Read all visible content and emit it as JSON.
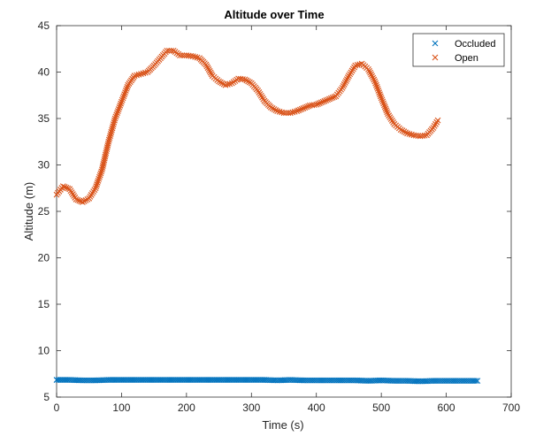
{
  "chart_data": {
    "type": "scatter",
    "title": "Altitude over Time",
    "xlabel": "Time (s)",
    "ylabel": "Altitude (m)",
    "xlim": [
      0,
      700
    ],
    "ylim": [
      5,
      45
    ],
    "xticks": [
      "0",
      "100",
      "200",
      "300",
      "400",
      "500",
      "600",
      "700"
    ],
    "yticks": [
      "5",
      "10",
      "15",
      "20",
      "25",
      "30",
      "35",
      "40",
      "45"
    ],
    "grid": false,
    "legend_position": "top-right",
    "marker": "x",
    "series": [
      {
        "name": "Occluded",
        "color": "#0072BD",
        "x": [
          0,
          20,
          40,
          60,
          80,
          100,
          120,
          140,
          160,
          180,
          200,
          220,
          240,
          260,
          280,
          300,
          320,
          340,
          360,
          380,
          400,
          420,
          440,
          460,
          480,
          500,
          520,
          540,
          560,
          580,
          600,
          620,
          640,
          648
        ],
        "y": [
          6.85,
          6.85,
          6.8,
          6.8,
          6.85,
          6.85,
          6.85,
          6.85,
          6.85,
          6.85,
          6.85,
          6.85,
          6.85,
          6.85,
          6.85,
          6.85,
          6.85,
          6.8,
          6.85,
          6.8,
          6.8,
          6.8,
          6.8,
          6.8,
          6.75,
          6.8,
          6.75,
          6.75,
          6.7,
          6.75,
          6.75,
          6.75,
          6.75,
          6.75
        ]
      },
      {
        "name": "Open",
        "color": "#D95319",
        "x": [
          0,
          10,
          20,
          30,
          40,
          50,
          60,
          70,
          80,
          90,
          100,
          110,
          120,
          130,
          140,
          150,
          160,
          170,
          180,
          190,
          200,
          210,
          220,
          230,
          240,
          250,
          260,
          270,
          280,
          290,
          300,
          310,
          320,
          330,
          340,
          350,
          360,
          370,
          380,
          390,
          400,
          410,
          420,
          430,
          440,
          450,
          460,
          470,
          480,
          490,
          500,
          510,
          520,
          530,
          540,
          550,
          560,
          570,
          580,
          587
        ],
        "y": [
          26.8,
          27.7,
          27.4,
          26.3,
          26.0,
          26.4,
          27.5,
          29.5,
          32.5,
          35.0,
          36.8,
          38.6,
          39.6,
          39.8,
          40.0,
          40.7,
          41.5,
          42.3,
          42.3,
          41.8,
          41.8,
          41.7,
          41.5,
          40.8,
          39.6,
          39.0,
          38.6,
          38.8,
          39.3,
          39.2,
          38.8,
          38.0,
          36.9,
          36.2,
          35.8,
          35.6,
          35.6,
          35.8,
          36.1,
          36.4,
          36.5,
          36.8,
          37.1,
          37.4,
          38.3,
          39.6,
          40.7,
          40.9,
          40.3,
          39.0,
          37.2,
          35.5,
          34.4,
          33.8,
          33.4,
          33.2,
          33.1,
          33.2,
          34.0,
          34.8
        ]
      }
    ]
  }
}
